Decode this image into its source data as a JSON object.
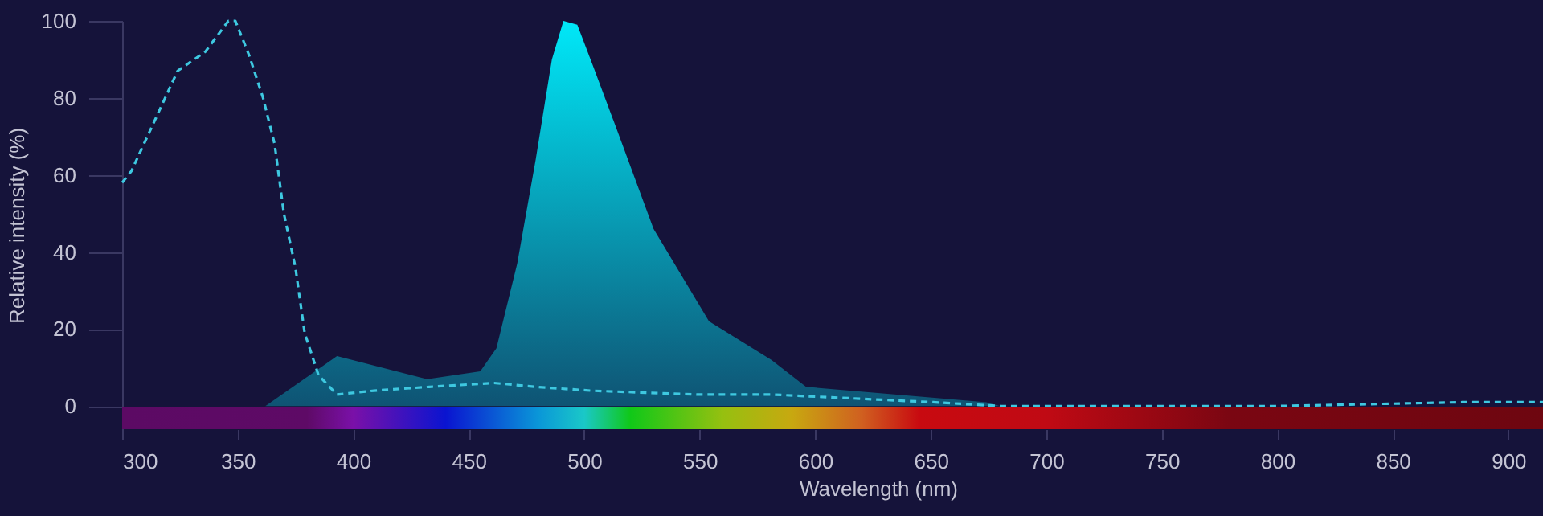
{
  "chart_data": {
    "type": "line",
    "xlabel": "Wavelength (nm)",
    "ylabel": "Relative intensity (%)",
    "xlim": [
      300,
      915
    ],
    "ylim": [
      -6,
      100
    ],
    "xticks": [
      300,
      350,
      400,
      450,
      500,
      550,
      600,
      650,
      700,
      750,
      800,
      850,
      900
    ],
    "yticks": [
      0,
      20,
      40,
      60,
      80,
      100
    ],
    "grid": false,
    "line_style": "dashed",
    "series": [
      {
        "type": "area",
        "color": "#00e8f8",
        "x": [
          362,
          393,
          432,
          455,
          462,
          471,
          479,
          486,
          491,
          497,
          504,
          514,
          530,
          554,
          581,
          596,
          674,
          680
        ],
        "values": [
          0,
          13,
          7,
          9,
          15,
          37,
          64,
          90,
          100,
          99,
          88,
          72,
          46,
          22,
          12,
          5,
          1,
          0
        ]
      },
      {
        "color": "#3ec8e0",
        "x": [
          300,
          304,
          324,
          336,
          346,
          349,
          355,
          361,
          366,
          370,
          375,
          379,
          385,
          393,
          409,
          433,
          461,
          479,
          503,
          549,
          581,
          651,
          680,
          700,
          800,
          880,
          915
        ],
        "values": [
          58,
          61,
          87,
          92,
          100,
          100,
          91,
          80,
          68,
          50,
          36,
          19,
          8,
          3,
          4,
          5,
          6,
          5,
          4,
          3,
          3,
          1,
          0,
          0,
          0,
          1,
          1
        ]
      }
    ]
  }
}
